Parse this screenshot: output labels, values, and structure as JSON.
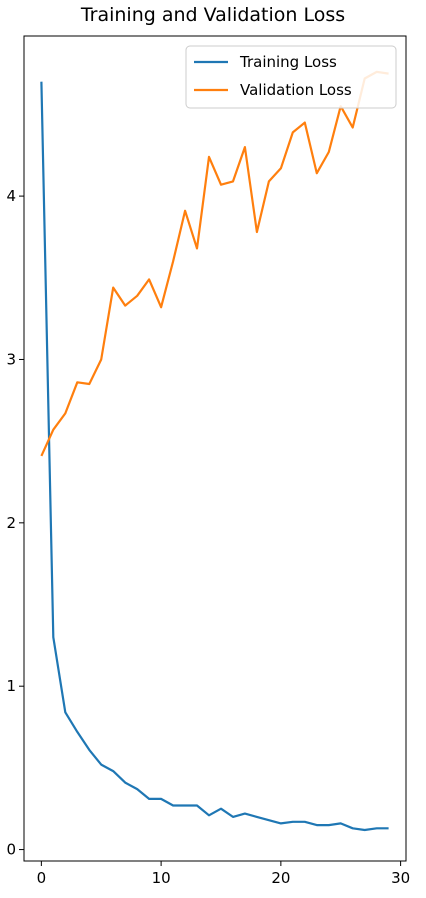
{
  "chart_data": {
    "type": "line",
    "title": "Training and Validation Loss",
    "xlabel": "",
    "ylabel": "",
    "xlim": [
      -1.45,
      30.45
    ],
    "ylim": [
      -0.07,
      4.98
    ],
    "xticks": [
      0,
      10,
      20,
      30
    ],
    "yticks": [
      0,
      1,
      2,
      3,
      4
    ],
    "grid": false,
    "legend_position": "upper right",
    "x": [
      0,
      1,
      2,
      3,
      4,
      5,
      6,
      7,
      8,
      9,
      10,
      11,
      12,
      13,
      14,
      15,
      16,
      17,
      18,
      19,
      20,
      21,
      22,
      23,
      24,
      25,
      26,
      27,
      28,
      29
    ],
    "series": [
      {
        "name": "Training Loss",
        "color": "#1f77b4",
        "values": [
          4.7,
          1.3,
          0.84,
          0.72,
          0.61,
          0.52,
          0.48,
          0.41,
          0.37,
          0.31,
          0.31,
          0.27,
          0.27,
          0.27,
          0.21,
          0.25,
          0.2,
          0.22,
          0.2,
          0.18,
          0.16,
          0.17,
          0.17,
          0.15,
          0.15,
          0.16,
          0.13,
          0.12,
          0.13,
          0.13
        ]
      },
      {
        "name": "Validation Loss",
        "color": "#ff7f0e",
        "values": [
          2.41,
          2.57,
          2.67,
          2.86,
          2.85,
          3.0,
          3.44,
          3.33,
          3.39,
          3.49,
          3.32,
          3.6,
          3.91,
          3.68,
          4.24,
          4.07,
          4.09,
          4.3,
          3.78,
          4.09,
          4.17,
          4.39,
          4.45,
          4.14,
          4.27,
          4.55,
          4.42,
          4.72,
          4.76,
          4.75
        ]
      }
    ]
  }
}
